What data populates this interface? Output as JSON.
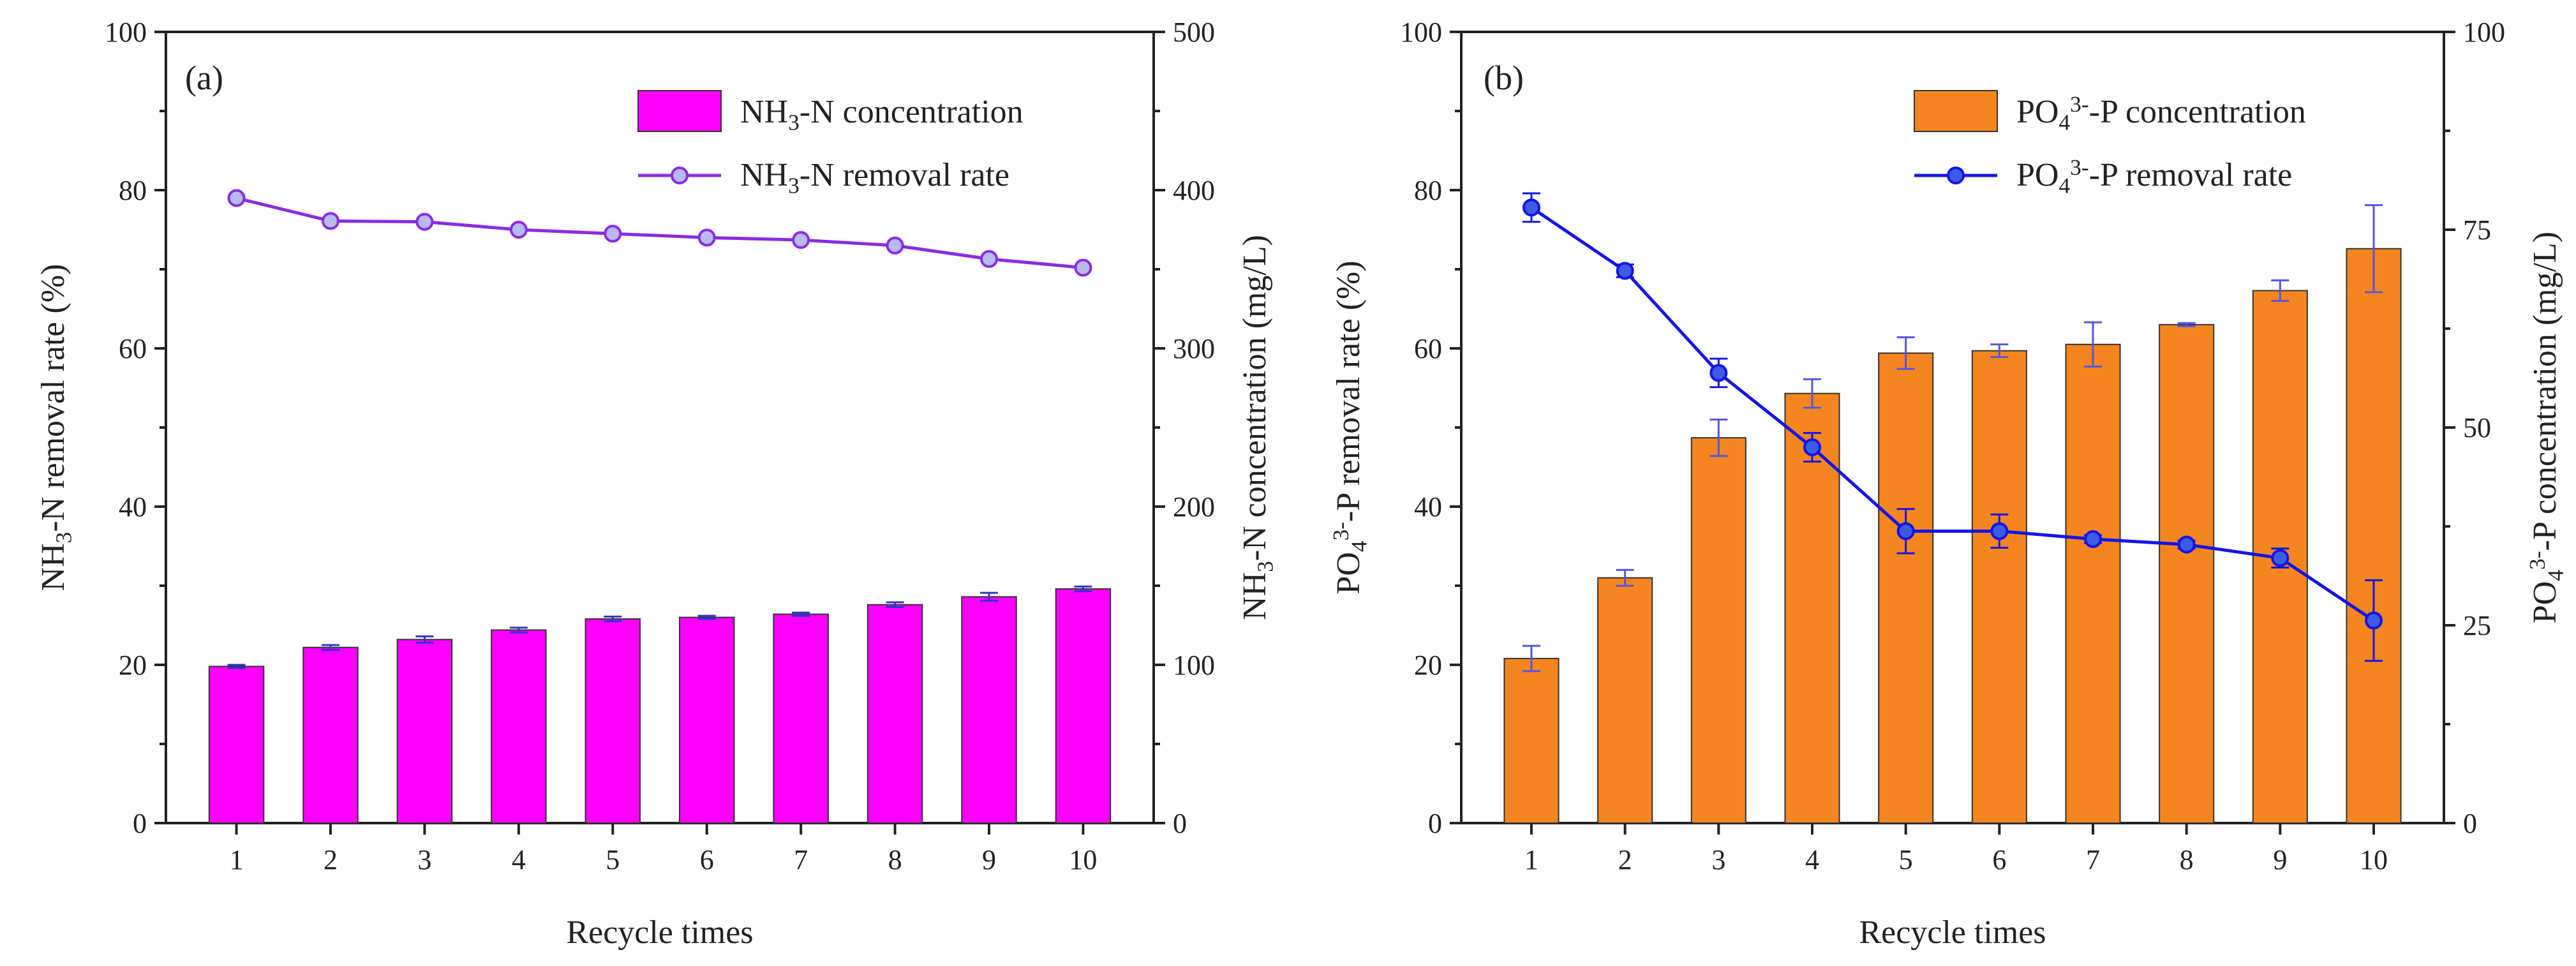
{
  "chart_data": [
    {
      "type": "bar+line",
      "panel_label": "(a)",
      "xlabel": "Recycle times",
      "ylabel_left": {
        "pre": "NH",
        "sub": "3",
        "post": "-N removal rate (%)"
      },
      "ylabel_right": {
        "pre": "NH",
        "sub": "3",
        "post": "-N concentration (mg/L)"
      },
      "categories": [
        "1",
        "2",
        "3",
        "4",
        "5",
        "6",
        "7",
        "8",
        "9",
        "10"
      ],
      "left_ticks": [
        "0",
        "20",
        "40",
        "60",
        "80",
        "100"
      ],
      "right_ticks": [
        "0",
        "100",
        "200",
        "300",
        "400",
        "500"
      ],
      "ylim_left": [
        0,
        100
      ],
      "ylim_right": [
        0,
        500
      ],
      "bar_series": {
        "name": "NH3-N concentration",
        "legend": {
          "pre": "NH",
          "sub": "3",
          "post": "-N concentration"
        },
        "axis": "right",
        "values": [
          99,
          111,
          116,
          122,
          129,
          130,
          132,
          138,
          143,
          148
        ],
        "errors": [
          1,
          1.5,
          2,
          1.5,
          1.5,
          1,
          1,
          1.5,
          2.5,
          1.5
        ],
        "color": "#ff00ff",
        "error_color": "#3333cc"
      },
      "line_series": {
        "name": "NH3-N removal rate",
        "legend": {
          "pre": "NH",
          "sub": "3",
          "post": "-N removal rate"
        },
        "axis": "left",
        "values": [
          79,
          76.1,
          76,
          75,
          74.5,
          74,
          73.7,
          73,
          71.3,
          70.2
        ],
        "errors": [
          0,
          0,
          0,
          0,
          0,
          0,
          0,
          0,
          0,
          0
        ],
        "color": "#8a2be2",
        "marker_fill": "#b9b9f2"
      }
    },
    {
      "type": "bar+line",
      "panel_label": "(b)",
      "xlabel": "Recycle times",
      "ylabel_left": {
        "pre": "PO",
        "sub": "4",
        "sup": "3-",
        "post": "-P removal rate (%)"
      },
      "ylabel_right": {
        "pre": "PO",
        "sub": "4",
        "sup": "3-",
        "post": "-P concentration (mg/L)"
      },
      "categories": [
        "1",
        "2",
        "3",
        "4",
        "5",
        "6",
        "7",
        "8",
        "9",
        "10"
      ],
      "left_ticks": [
        "0",
        "20",
        "40",
        "60",
        "80",
        "100"
      ],
      "right_ticks": [
        "0",
        "25",
        "50",
        "75",
        "100"
      ],
      "ylim_left": [
        0,
        100
      ],
      "ylim_right": [
        0,
        100
      ],
      "bar_series": {
        "name": "PO43--P concentration",
        "legend": {
          "pre": "PO",
          "sub": "4",
          "sup": "3-",
          "post": "-P concentration"
        },
        "axis": "right",
        "values": [
          20.8,
          31,
          48.7,
          54.3,
          59.4,
          59.7,
          60.5,
          63,
          67.3,
          72.6
        ],
        "errors": [
          1.6,
          1,
          2.3,
          1.8,
          2,
          0.8,
          2.8,
          0.2,
          1.3,
          5.5
        ],
        "color": "#f5861f",
        "error_color": "#5555dd"
      },
      "line_series": {
        "name": "PO43--P removal rate",
        "legend": {
          "pre": "PO",
          "sub": "4",
          "sup": "3-",
          "post": "-P removal rate"
        },
        "axis": "left",
        "values": [
          77.8,
          69.8,
          56.9,
          47.5,
          36.9,
          36.9,
          35.9,
          35.2,
          33.5,
          25.6
        ],
        "errors": [
          1.8,
          0.8,
          1.8,
          1.8,
          2.8,
          2.1,
          0.5,
          0.5,
          1.2,
          5.1
        ],
        "color": "#1414e6",
        "marker_fill": "#3d5ce6"
      }
    }
  ]
}
